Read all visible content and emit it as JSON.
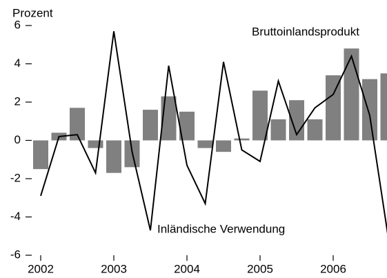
{
  "chart_data": {
    "type": "bar_line",
    "y_label": "Prozent",
    "categories": [
      "2002",
      null,
      null,
      null,
      "2003",
      null,
      null,
      null,
      "2004",
      null,
      null,
      null,
      "2005",
      null,
      null,
      null,
      "2006",
      null,
      null,
      null
    ],
    "series": [
      {
        "name": "Bruttoinlandsprodukt",
        "type": "bar",
        "color": "#808080",
        "values": [
          -1.5,
          0.4,
          1.7,
          -0.4,
          -1.7,
          -1.4,
          1.6,
          2.3,
          1.5,
          -0.4,
          -0.6,
          0.1,
          2.6,
          1.1,
          2.1,
          1.1,
          3.4,
          4.8,
          3.2,
          3.5
        ]
      },
      {
        "name": "Inländische Verwendung",
        "type": "line",
        "color": "#000000",
        "values": [
          -2.9,
          0.2,
          0.3,
          -1.7,
          5.7,
          -0.6,
          -4.7,
          3.9,
          -1.3,
          -3.3,
          4.1,
          -0.5,
          -1.1,
          3.1,
          0.3,
          1.7,
          2.4,
          4.4,
          1.3,
          -5.0
        ]
      }
    ],
    "ylim": [
      -6,
      6
    ],
    "yticks": [
      -6,
      -4,
      -2,
      0,
      2,
      4,
      6
    ],
    "grid": false
  }
}
